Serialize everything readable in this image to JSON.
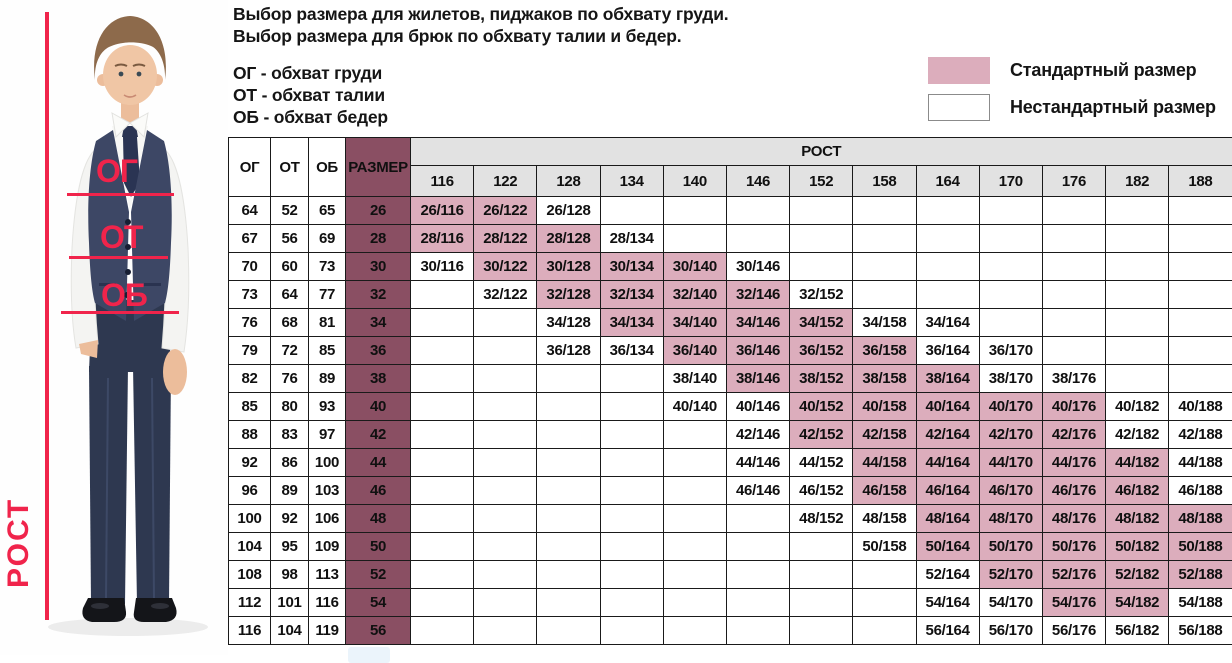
{
  "intro": {
    "line1": "Выбор размера для жилетов, пиджаков по обхвату груди.",
    "line2": "Выбор размера для брюк по обхвату талии и бедер.",
    "abbr_chest": "ОГ - обхват груди",
    "abbr_waist": "ОТ - обхват талии",
    "abbr_hips": "ОБ - обхват бедер"
  },
  "legend": {
    "standard_label": "Стандартный размер",
    "nonstandard_label": "Нестандартный размер",
    "standard_color": "#dcadbc",
    "nonstandard_color": "#ffffff"
  },
  "figure": {
    "height_label": "РОСТ",
    "chest_label": "ОГ",
    "waist_label": "ОТ",
    "hips_label": "ОБ",
    "accent_color": "#f0244b"
  },
  "table": {
    "header": {
      "chest": "ОГ",
      "waist": "ОТ",
      "hips": "ОБ",
      "size": "РАЗМЕР",
      "height_group": "РОСТ"
    },
    "heights": [
      "116",
      "122",
      "128",
      "134",
      "140",
      "146",
      "152",
      "158",
      "164",
      "170",
      "176",
      "182",
      "188"
    ],
    "colors": {
      "standard_cell": "#dcadbc",
      "size_column": "#8a4f63",
      "header_bg": "#e2e2e2"
    },
    "rows": [
      {
        "chest": "64",
        "waist": "52",
        "hips": "65",
        "size": "26",
        "cells": [
          "s",
          "s",
          "n",
          "",
          "",
          "",
          "",
          "",
          "",
          "",
          "",
          "",
          ""
        ]
      },
      {
        "chest": "67",
        "waist": "56",
        "hips": "69",
        "size": "28",
        "cells": [
          "s",
          "s",
          "s",
          "n",
          "",
          "",
          "",
          "",
          "",
          "",
          "",
          "",
          ""
        ]
      },
      {
        "chest": "70",
        "waist": "60",
        "hips": "73",
        "size": "30",
        "cells": [
          "n",
          "s",
          "s",
          "s",
          "s",
          "n",
          "",
          "",
          "",
          "",
          "",
          "",
          ""
        ]
      },
      {
        "chest": "73",
        "waist": "64",
        "hips": "77",
        "size": "32",
        "cells": [
          "",
          "n",
          "s",
          "s",
          "s",
          "s",
          "n",
          "",
          "",
          "",
          "",
          "",
          ""
        ]
      },
      {
        "chest": "76",
        "waist": "68",
        "hips": "81",
        "size": "34",
        "cells": [
          "",
          "",
          "n",
          "s",
          "s",
          "s",
          "s",
          "n",
          "n",
          "",
          "",
          "",
          ""
        ]
      },
      {
        "chest": "79",
        "waist": "72",
        "hips": "85",
        "size": "36",
        "cells": [
          "",
          "",
          "n",
          "n",
          "s",
          "s",
          "s",
          "s",
          "n",
          "n",
          "",
          "",
          ""
        ]
      },
      {
        "chest": "82",
        "waist": "76",
        "hips": "89",
        "size": "38",
        "cells": [
          "",
          "",
          "",
          "",
          "n",
          "s",
          "s",
          "s",
          "s",
          "n",
          "n",
          "",
          ""
        ]
      },
      {
        "chest": "85",
        "waist": "80",
        "hips": "93",
        "size": "40",
        "cells": [
          "",
          "",
          "",
          "",
          "n",
          "n",
          "s",
          "s",
          "s",
          "s",
          "s",
          "n",
          "n"
        ]
      },
      {
        "chest": "88",
        "waist": "83",
        "hips": "97",
        "size": "42",
        "cells": [
          "",
          "",
          "",
          "",
          "",
          "n",
          "s",
          "s",
          "s",
          "s",
          "s",
          "n",
          "n"
        ]
      },
      {
        "chest": "92",
        "waist": "86",
        "hips": "100",
        "size": "44",
        "cells": [
          "",
          "",
          "",
          "",
          "",
          "n",
          "n",
          "s",
          "s",
          "s",
          "s",
          "s",
          "n"
        ]
      },
      {
        "chest": "96",
        "waist": "89",
        "hips": "103",
        "size": "46",
        "cells": [
          "",
          "",
          "",
          "",
          "",
          "n",
          "n",
          "s",
          "s",
          "s",
          "s",
          "s",
          "n"
        ]
      },
      {
        "chest": "100",
        "waist": "92",
        "hips": "106",
        "size": "48",
        "cells": [
          "",
          "",
          "",
          "",
          "",
          "",
          "n",
          "n",
          "s",
          "s",
          "s",
          "s",
          "s"
        ]
      },
      {
        "chest": "104",
        "waist": "95",
        "hips": "109",
        "size": "50",
        "cells": [
          "",
          "",
          "",
          "",
          "",
          "",
          "",
          "n",
          "s",
          "s",
          "s",
          "s",
          "s"
        ]
      },
      {
        "chest": "108",
        "waist": "98",
        "hips": "113",
        "size": "52",
        "cells": [
          "",
          "",
          "",
          "",
          "",
          "",
          "",
          "",
          "n",
          "s",
          "s",
          "s",
          "s"
        ]
      },
      {
        "chest": "112",
        "waist": "101",
        "hips": "116",
        "size": "54",
        "cells": [
          "",
          "",
          "",
          "",
          "",
          "",
          "",
          "",
          "n",
          "n",
          "s",
          "s",
          "n"
        ]
      },
      {
        "chest": "116",
        "waist": "104",
        "hips": "119",
        "size": "56",
        "cells": [
          "",
          "",
          "",
          "",
          "",
          "",
          "",
          "",
          "n",
          "n",
          "n",
          "n",
          "n"
        ]
      }
    ]
  }
}
